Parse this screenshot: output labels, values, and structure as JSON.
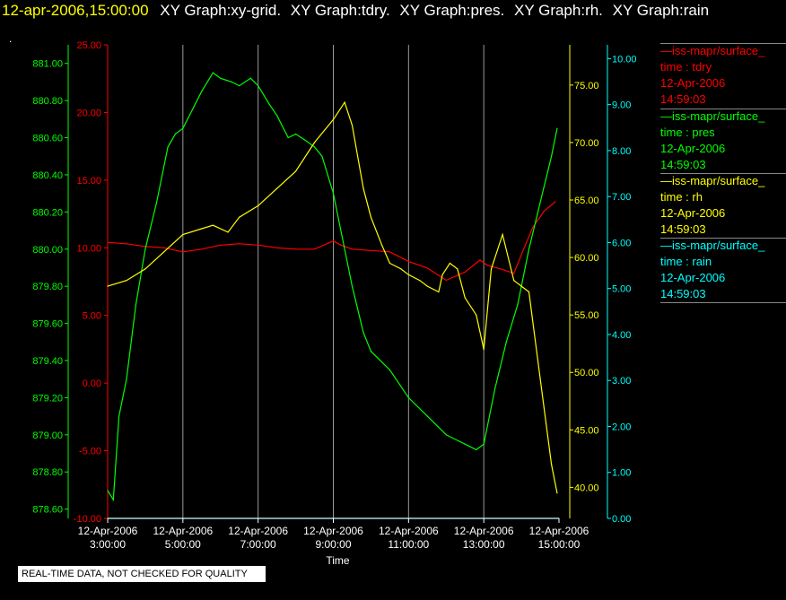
{
  "header": {
    "timestamp": "12-apr-2006,15:00:00",
    "titles": [
      "XY Graph:xy-grid.",
      "XY Graph:tdry.",
      "XY Graph:pres.",
      "XY Graph:rh.",
      "XY Graph:rain"
    ]
  },
  "dot": ".",
  "footer_note": "REAL-TIME DATA, NOT CHECKED FOR QUALITY",
  "legend": [
    {
      "name": "iss-mapr/surface_",
      "label": "time : tdry",
      "date": "12-Apr-2006",
      "time": "14:59:03",
      "color": "#ff0000"
    },
    {
      "name": "iss-mapr/surface_",
      "label": "time : pres",
      "date": "12-Apr-2006",
      "time": "14:59:03",
      "color": "#00ff00"
    },
    {
      "name": "iss-mapr/surface_",
      "label": "time : rh",
      "date": "12-Apr-2006",
      "time": "14:59:03",
      "color": "#ffff00"
    },
    {
      "name": "iss-mapr/surface_",
      "label": "time : rain",
      "date": "12-Apr-2006",
      "time": "14:59:03",
      "color": "#00ffff"
    }
  ],
  "chart_data": {
    "type": "line",
    "xlabel": "Time",
    "x_ticks": [
      {
        "hour": 3,
        "date": "12-Apr-2006",
        "time": "3:00:00"
      },
      {
        "hour": 5,
        "date": "12-Apr-2006",
        "time": "5:00:00"
      },
      {
        "hour": 7,
        "date": "12-Apr-2006",
        "time": "7:00:00"
      },
      {
        "hour": 9,
        "date": "12-Apr-2006",
        "time": "9:00:00"
      },
      {
        "hour": 11,
        "date": "12-Apr-2006",
        "time": "11:00:00"
      },
      {
        "hour": 13,
        "date": "12-Apr-2006",
        "time": "13:00:00"
      },
      {
        "hour": 15,
        "date": "12-Apr-2006",
        "time": "15:00:00"
      }
    ],
    "xlim": [
      3,
      15
    ],
    "grid": "vertical",
    "axes": {
      "pres": {
        "color": "#00ff00",
        "ylim": [
          878.55,
          881.1
        ],
        "ticks": [
          "878.60",
          "878.80",
          "879.00",
          "879.20",
          "879.40",
          "879.60",
          "879.80",
          "880.00",
          "880.20",
          "880.40",
          "880.60",
          "880.80",
          "881.00"
        ]
      },
      "tdry": {
        "color": "#ff0000",
        "ylim": [
          -10,
          25
        ],
        "ticks": [
          "-10.00",
          "-5.00",
          "0.00",
          "5.00",
          "10.00",
          "15.00",
          "20.00",
          "25.00"
        ]
      },
      "rh": {
        "color": "#ffff00",
        "ylim": [
          37.3,
          78.5
        ],
        "ticks": [
          "40.00",
          "45.00",
          "50.00",
          "55.00",
          "60.00",
          "65.00",
          "70.00",
          "75.00"
        ]
      },
      "rain": {
        "color": "#00ffff",
        "ylim": [
          0,
          10.3
        ],
        "ticks": [
          "0.00",
          "1.00",
          "2.00",
          "3.00",
          "4.00",
          "5.00",
          "6.00",
          "7.00",
          "8.00",
          "9.00",
          "10.00"
        ]
      }
    },
    "series": [
      {
        "name": "tdry",
        "axis": "tdry",
        "color": "#ff0000",
        "x": [
          3.0,
          3.5,
          4.0,
          4.5,
          5.0,
          5.5,
          6.0,
          6.5,
          7.0,
          7.5,
          8.0,
          8.5,
          9.0,
          9.2,
          9.5,
          10.0,
          10.5,
          11.0,
          11.5,
          12.0,
          12.5,
          12.9,
          13.1,
          13.5,
          13.8,
          14.0,
          14.3,
          14.6,
          14.9
        ],
        "y": [
          10.4,
          10.3,
          10.1,
          10.0,
          9.7,
          9.9,
          10.2,
          10.3,
          10.2,
          10.0,
          9.9,
          9.9,
          10.5,
          10.2,
          9.9,
          9.8,
          9.7,
          9.0,
          8.5,
          7.6,
          8.2,
          9.1,
          8.7,
          8.4,
          8.1,
          9.5,
          11.5,
          12.7,
          13.4
        ]
      },
      {
        "name": "pres",
        "axis": "pres",
        "color": "#00ff00",
        "x": [
          3.0,
          3.15,
          3.3,
          3.5,
          3.75,
          4.0,
          4.3,
          4.6,
          4.8,
          5.0,
          5.5,
          5.8,
          6.0,
          6.3,
          6.5,
          6.8,
          7.0,
          7.3,
          7.5,
          7.8,
          8.0,
          8.3,
          8.5,
          8.7,
          9.0,
          9.2,
          9.5,
          9.8,
          10.0,
          10.5,
          11.0,
          11.5,
          12.0,
          12.5,
          12.8,
          13.0,
          13.3,
          13.6,
          13.9,
          14.2,
          14.5,
          14.8,
          14.95
        ],
        "y": [
          878.7,
          878.65,
          879.1,
          879.3,
          879.7,
          880.0,
          880.25,
          880.55,
          880.62,
          880.65,
          880.85,
          880.95,
          880.92,
          880.9,
          880.88,
          880.92,
          880.88,
          880.78,
          880.72,
          880.6,
          880.62,
          880.58,
          880.55,
          880.5,
          880.3,
          880.1,
          879.8,
          879.55,
          879.45,
          879.35,
          879.2,
          879.1,
          879.0,
          878.95,
          878.92,
          878.95,
          879.25,
          879.5,
          879.7,
          880.0,
          880.25,
          880.5,
          880.65
        ]
      },
      {
        "name": "rh",
        "axis": "rh",
        "color": "#ffff00",
        "x": [
          3.0,
          3.5,
          4.0,
          4.5,
          5.0,
          5.5,
          5.8,
          6.2,
          6.5,
          7.0,
          7.5,
          8.0,
          8.5,
          9.0,
          9.3,
          9.5,
          9.8,
          10.0,
          10.3,
          10.5,
          10.8,
          11.0,
          11.3,
          11.5,
          11.8,
          11.9,
          12.1,
          12.3,
          12.5,
          12.8,
          13.0,
          13.2,
          13.5,
          13.8,
          14.0,
          14.2,
          14.5,
          14.8,
          14.95
        ],
        "y": [
          57.5,
          58.0,
          59.0,
          60.5,
          62.0,
          62.5,
          62.8,
          62.2,
          63.5,
          64.5,
          66.0,
          67.5,
          70.0,
          72.0,
          73.5,
          71.5,
          66.0,
          63.5,
          61.0,
          59.5,
          59.0,
          58.5,
          58.0,
          57.5,
          57.0,
          58.5,
          59.5,
          59.0,
          56.5,
          55.0,
          52.0,
          59.0,
          62.0,
          58.0,
          57.5,
          57.0,
          49.5,
          42.0,
          39.5
        ]
      },
      {
        "name": "rain",
        "axis": "rain",
        "color": "#00ffff",
        "x": [
          3.0,
          15.0
        ],
        "y": [
          0.0,
          0.0
        ]
      }
    ]
  }
}
